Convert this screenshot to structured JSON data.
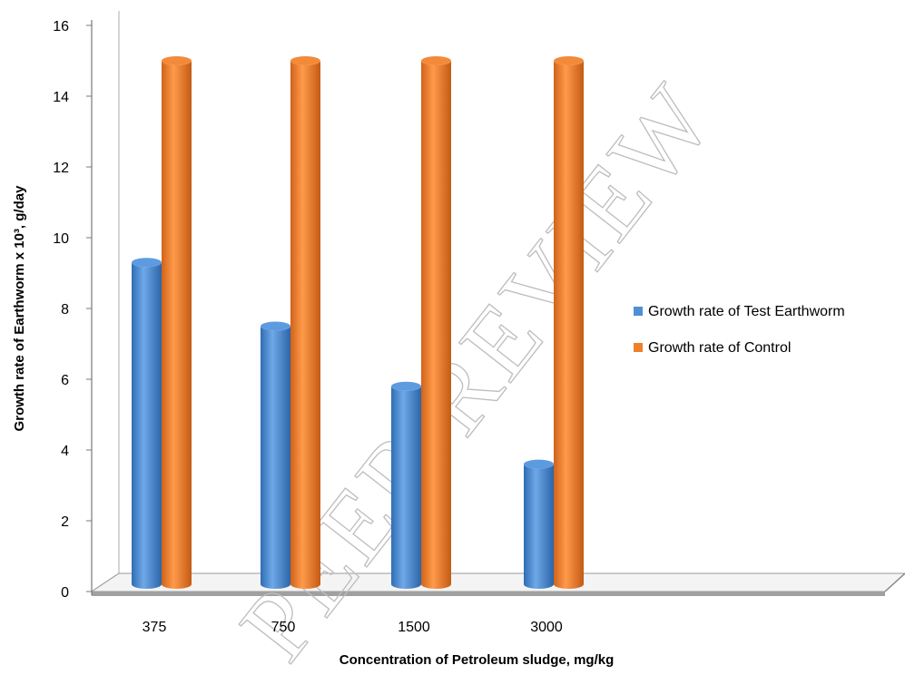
{
  "chart_data": {
    "type": "bar",
    "style": "3d-cylinder",
    "categories": [
      "375",
      "750",
      "1500",
      "3000"
    ],
    "series": [
      {
        "name": "Growth rate of Test Earthworm",
        "values": [
          9.3,
          7.5,
          5.8,
          3.6
        ],
        "color": "#4F8FD6"
      },
      {
        "name": "Growth rate of Control",
        "values": [
          15,
          15,
          15,
          15
        ],
        "color": "#F07F2A"
      }
    ],
    "xlabel": "Concentration of Petroleum sludge, mg/kg",
    "ylabel": "Growth rate of Earthworm x 10³, g/day",
    "ylim": [
      0,
      16
    ],
    "yticks": [
      0,
      2,
      4,
      6,
      8,
      10,
      12,
      14,
      16
    ],
    "grid": false,
    "legend_position": "right"
  },
  "watermark": "PEER REVIEW"
}
